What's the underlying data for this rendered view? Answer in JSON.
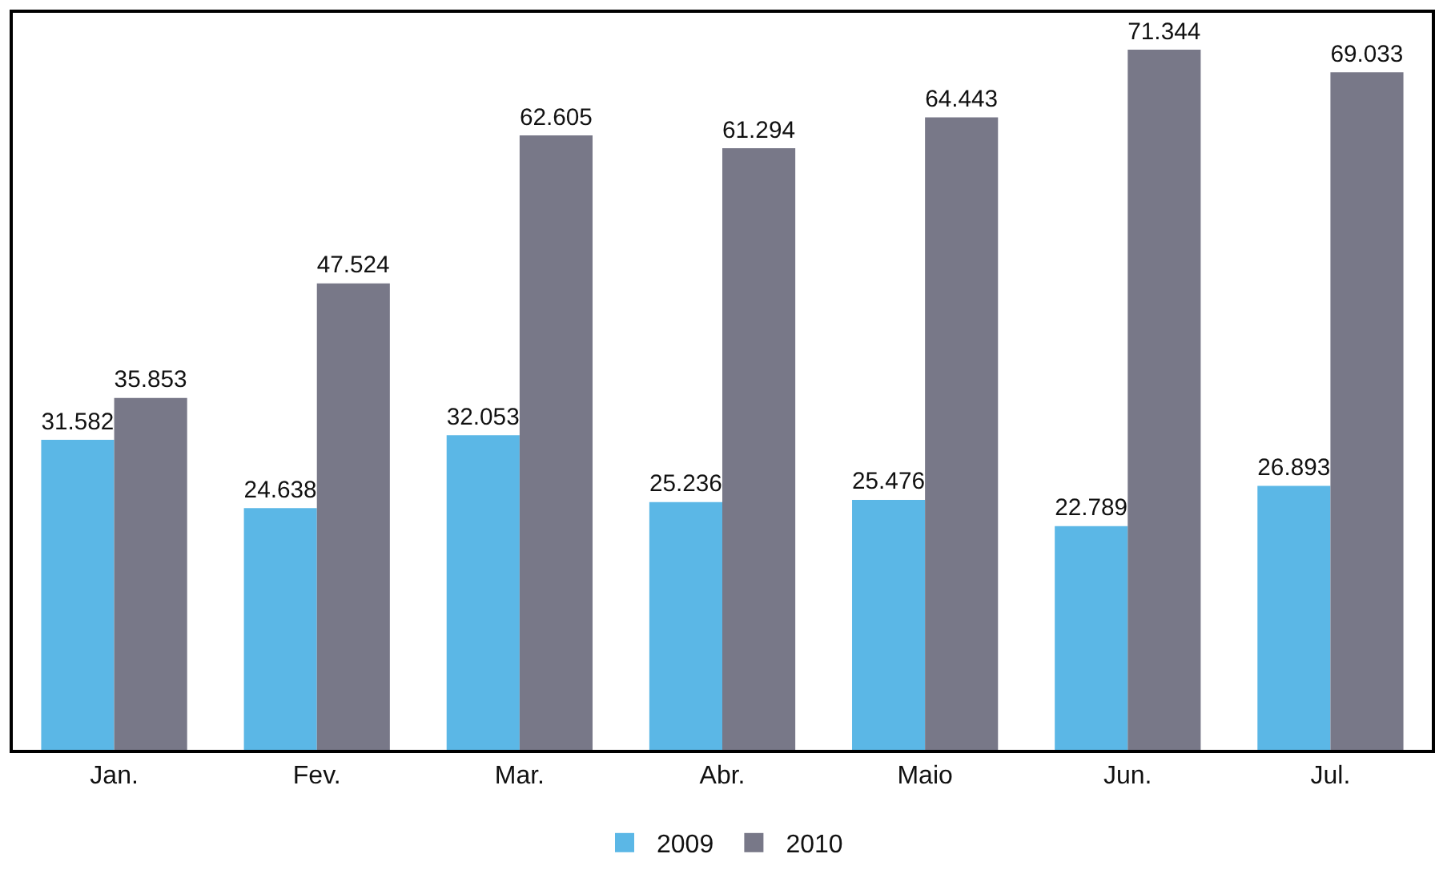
{
  "chart_data": {
    "type": "bar",
    "categories": [
      "Jan.",
      "Fev.",
      "Mar.",
      "Abr.",
      "Maio",
      "Jun.",
      "Jul."
    ],
    "series": [
      {
        "name": "2009",
        "color": "#5bb7e6",
        "values": [
          31582,
          24638,
          32053,
          25236,
          25476,
          22789,
          26893
        ],
        "value_labels": [
          "31.582",
          "24.638",
          "32.053",
          "25.236",
          "25.476",
          "22.789",
          "26.893"
        ]
      },
      {
        "name": "2010",
        "color": "#787888",
        "values": [
          35853,
          47524,
          62605,
          61294,
          64443,
          71344,
          69033
        ],
        "value_labels": [
          "35.853",
          "47.524",
          "62.605",
          "61.294",
          "64.443",
          "71.344",
          "69.033"
        ]
      }
    ],
    "legend": "bottom"
  }
}
